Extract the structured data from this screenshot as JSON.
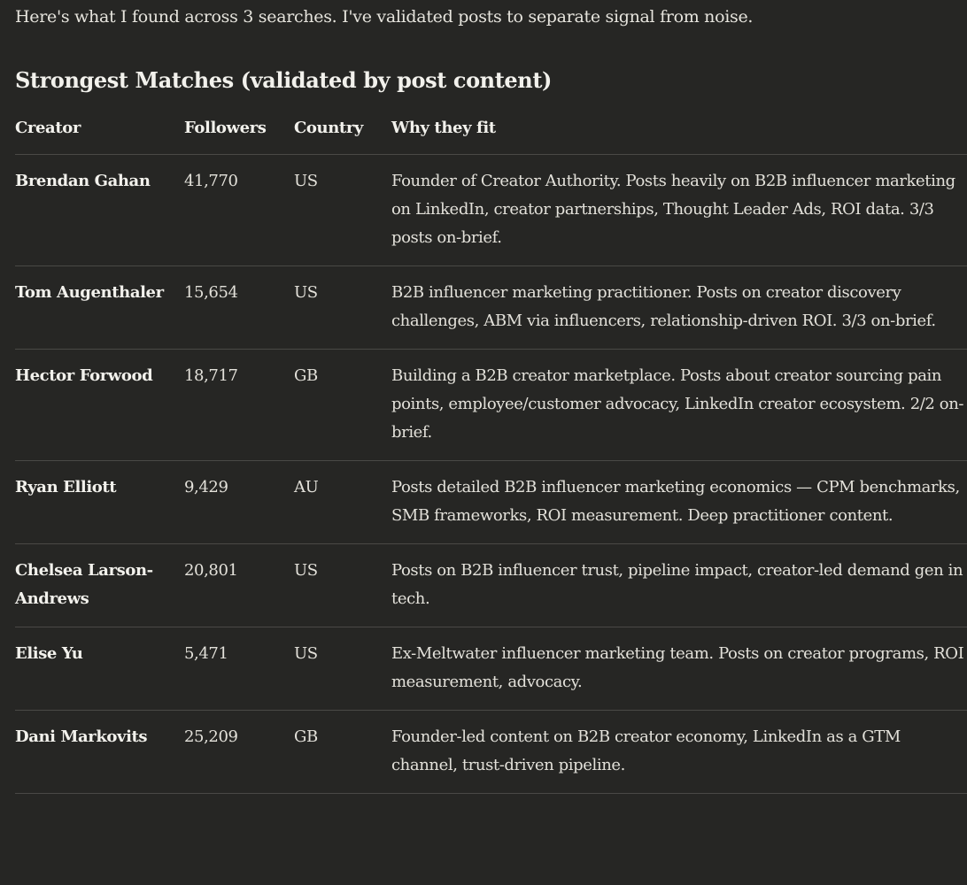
{
  "intro": "Here's what I found across 3 searches. I've validated posts to separate signal from noise.",
  "section_title": "Strongest Matches (validated by post content)",
  "table": {
    "headers": [
      "Creator",
      "Followers",
      "Country",
      "Why they fit"
    ],
    "rows": [
      {
        "creator": "Brendan Gahan",
        "followers": "41,770",
        "country": "US",
        "why": "Founder of Creator Authority. Posts heavily on B2B influencer marketing on LinkedIn, creator partnerships, Thought Leader Ads, ROI data. 3/3 posts on-brief."
      },
      {
        "creator": "Tom Augenthaler",
        "followers": "15,654",
        "country": "US",
        "why": "B2B influencer marketing practitioner. Posts on creator discovery challenges, ABM via influencers, relationship-driven ROI. 3/3 on-brief."
      },
      {
        "creator": "Hector Forwood",
        "followers": "18,717",
        "country": "GB",
        "why": "Building a B2B creator marketplace. Posts about creator sourcing pain points, employee/customer advocacy, LinkedIn creator ecosystem. 2/2 on-brief."
      },
      {
        "creator": "Ryan Elliott",
        "followers": "9,429",
        "country": "AU",
        "why": "Posts detailed B2B influencer marketing economics — CPM benchmarks, SMB frameworks, ROI measurement. Deep practitioner content."
      },
      {
        "creator": "Chelsea Larson-Andrews",
        "followers": "20,801",
        "country": "US",
        "why": "Posts on B2B influencer trust, pipeline impact, creator-led demand gen in tech."
      },
      {
        "creator": "Elise Yu",
        "followers": "5,471",
        "country": "US",
        "why": "Ex-Meltwater influencer marketing team. Posts on creator programs, ROI measurement, advocacy."
      },
      {
        "creator": "Dani Markovits",
        "followers": "25,209",
        "country": "GB",
        "why": "Founder-led content on B2B creator economy, LinkedIn as a GTM channel, trust-driven pipeline."
      }
    ]
  }
}
